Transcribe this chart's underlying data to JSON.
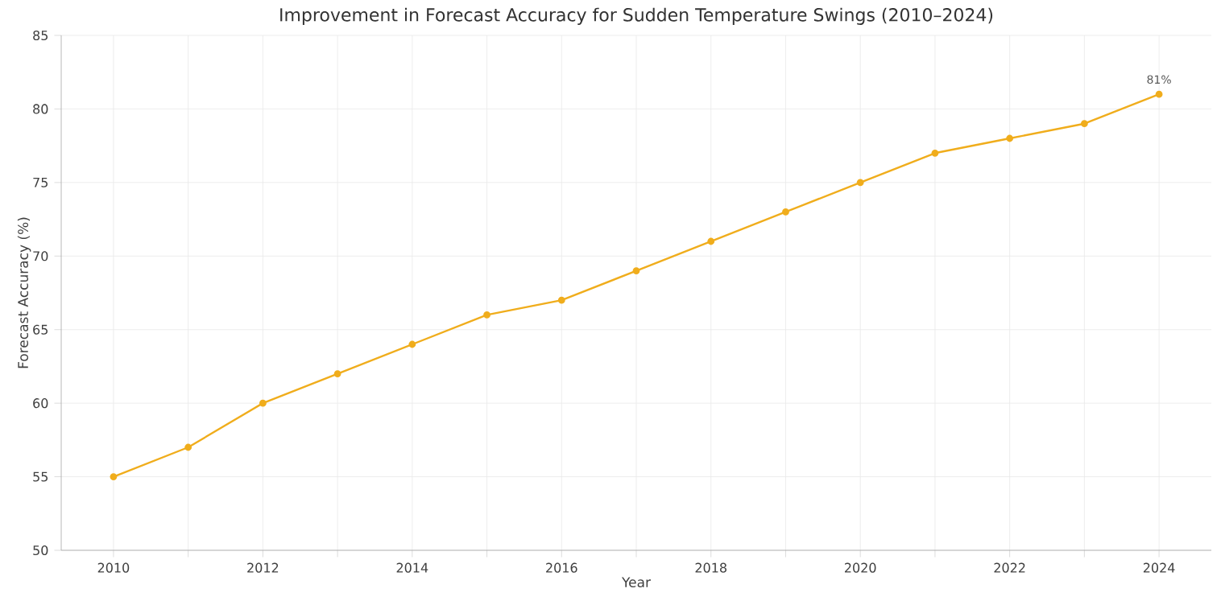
{
  "chart_data": {
    "type": "line",
    "title": "Improvement in Forecast Accuracy for Sudden Temperature Swings (2010–2024)",
    "xlabel": "Year",
    "ylabel": "Forecast Accuracy (%)",
    "x": [
      2010,
      2011,
      2012,
      2013,
      2014,
      2015,
      2016,
      2017,
      2018,
      2019,
      2020,
      2021,
      2022,
      2023,
      2024
    ],
    "series": [
      {
        "color": "#f0ad1c",
        "values": [
          55,
          57,
          60,
          62,
          64,
          66,
          67,
          69,
          71,
          73,
          75,
          77,
          78,
          79,
          81
        ]
      }
    ],
    "xlim": [
      2009.3,
      2024.7
    ],
    "ylim": [
      50,
      85
    ],
    "xticks": [
      2010,
      {
        "value": 2011,
        "label": null
      },
      2012,
      {
        "value": 2013,
        "label": null
      },
      2014,
      {
        "value": 2015,
        "label": null
      },
      2016,
      {
        "value": 2017,
        "label": null
      },
      2018,
      {
        "value": 2019,
        "label": null
      },
      2020,
      {
        "value": 2021,
        "label": null
      },
      2022,
      {
        "value": 2023,
        "label": null
      },
      2024
    ],
    "yticks": [
      50,
      55,
      60,
      65,
      70,
      75,
      80,
      85
    ],
    "annotations": [
      {
        "text": "81%",
        "x": 2024,
        "y": 81
      }
    ],
    "grid": true,
    "marker": "circle",
    "line_style": "solid"
  }
}
